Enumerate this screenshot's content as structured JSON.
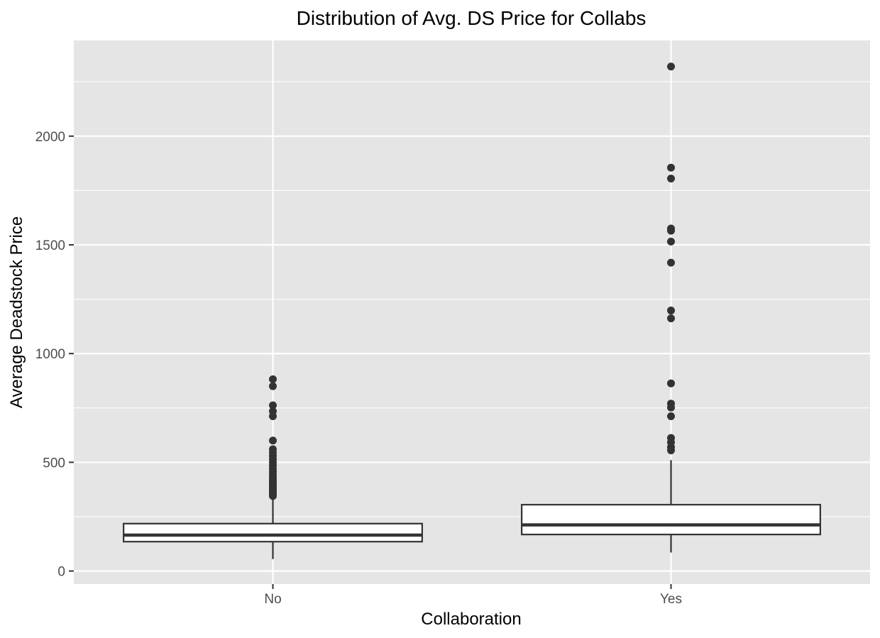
{
  "chart_data": {
    "type": "boxplot",
    "title": "Distribution of Avg. DS Price for Collabs",
    "xlabel": "Collaboration",
    "ylabel": "Average Deadstock Price",
    "categories": [
      "No",
      "Yes"
    ],
    "ylim": [
      -60,
      2440
    ],
    "yticks": [
      0,
      500,
      1000,
      1500,
      2000
    ],
    "ytick_labels": [
      "0",
      "500",
      "1000",
      "1500",
      "2000"
    ],
    "grid": true,
    "boxes": [
      {
        "category": "No",
        "whisker_low": 55,
        "q1": 135,
        "median": 165,
        "q3": 218,
        "whisker_high": 337,
        "outliers": [
          345,
          352,
          360,
          368,
          375,
          383,
          392,
          400,
          410,
          420,
          432,
          445,
          458,
          470,
          485,
          500,
          515,
          530,
          545,
          560,
          600,
          712,
          735,
          762,
          850,
          882
        ]
      },
      {
        "category": "Yes",
        "whisker_low": 85,
        "q1": 168,
        "median": 212,
        "q3": 305,
        "whisker_high": 510,
        "outliers": [
          555,
          570,
          592,
          612,
          712,
          752,
          770,
          863,
          1162,
          1198,
          1418,
          1515,
          1565,
          1575,
          1805,
          1855,
          2320
        ]
      }
    ],
    "colors": {
      "panel_background": "#e5e5e5",
      "grid_major": "#ffffff",
      "box_fill": "#ffffff",
      "box_stroke": "#333333",
      "outlier": "#333333",
      "tick_text": "#4d4d4d",
      "title_text": "#000000"
    }
  }
}
